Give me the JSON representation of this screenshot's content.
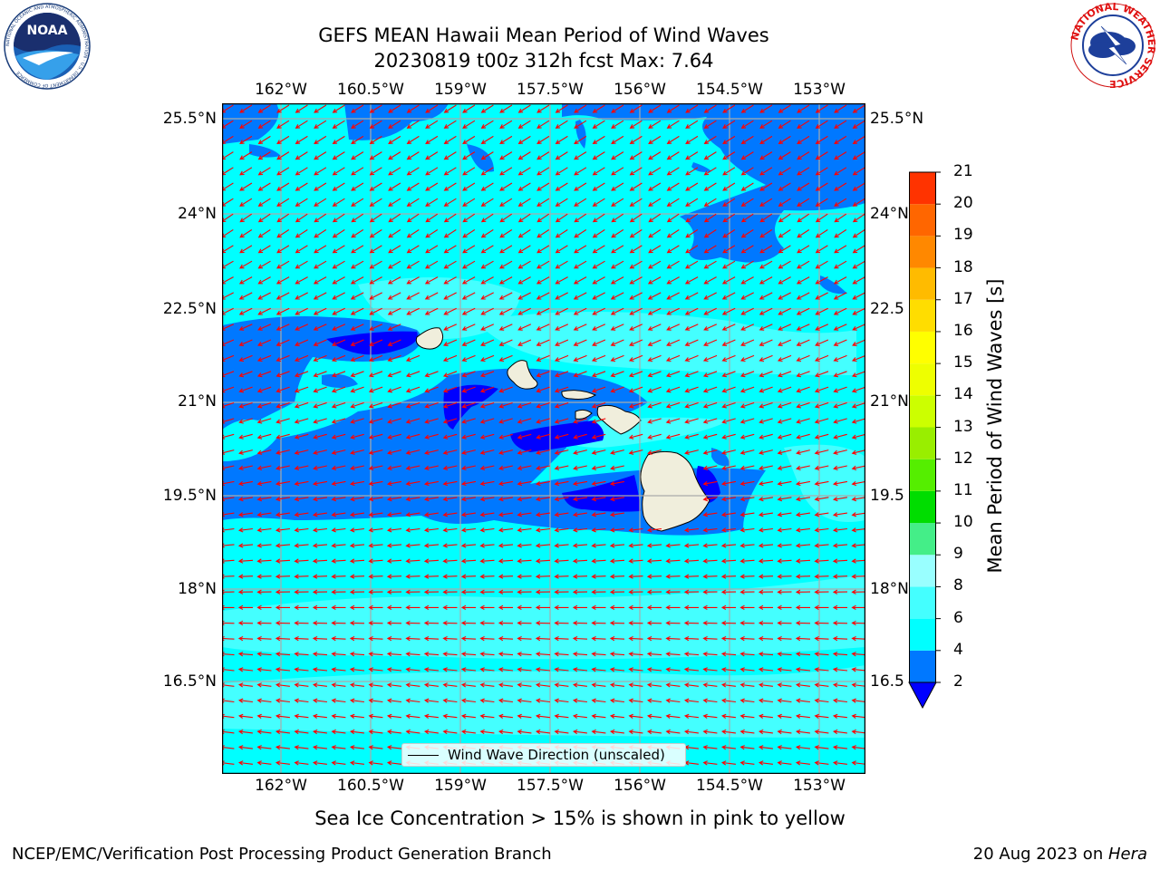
{
  "title_line1": "GEFS MEAN Hawaii Mean Period of Wind Waves",
  "title_line2": "20230819 t00z 312h fcst   Max: 7.64",
  "noaa_logo": {
    "center": "NOAA",
    "ring_text": "NATIONAL OCEANIC AND ATMOSPHERIC ADMINISTRATION · U.S. DEPARTMENT OF COMMERCE"
  },
  "nws_logo": {
    "ring_text": "NATIONAL WEATHER SERVICE"
  },
  "lon_ticks": [
    "162°W",
    "160.5°W",
    "159°W",
    "157.5°W",
    "156°W",
    "154.5°W",
    "153°W"
  ],
  "lat_ticks": [
    "25.5°N",
    "24°N",
    "22.5°N",
    "21°N",
    "19.5°N",
    "18°N",
    "16.5°N"
  ],
  "lat_ticks_right": [
    "25.5°N",
    "24°N",
    "22.5",
    "21°N",
    "19.5",
    "18°N",
    "16.5"
  ],
  "legend_label": "Wind Wave Direction (unscaled)",
  "colorbar": {
    "title": "Mean Period of Wind Waves [s]",
    "labels": [
      "2",
      "4",
      "6",
      "8",
      "9",
      "10",
      "11",
      "12",
      "13",
      "14",
      "15",
      "16",
      "17",
      "18",
      "19",
      "20",
      "21"
    ],
    "colors": [
      "#0078ff",
      "#00ffff",
      "#44ffff",
      "#99ffff",
      "#44ee88",
      "#00dd00",
      "#55ee00",
      "#99ee00",
      "#ccff00",
      "#eeff00",
      "#ffff00",
      "#ffdd00",
      "#ffbb00",
      "#ff8800",
      "#ff6600",
      "#ff3300",
      "#ff0000"
    ],
    "under_color": "#0000ff"
  },
  "caption": "Sea Ice Concentration > 15% is shown in pink to yellow",
  "footer_left": "NCEP/EMC/Verification Post Processing Product Generation Branch",
  "footer_right_date": "20 Aug 2023 on ",
  "footer_right_host": "Hera"
}
